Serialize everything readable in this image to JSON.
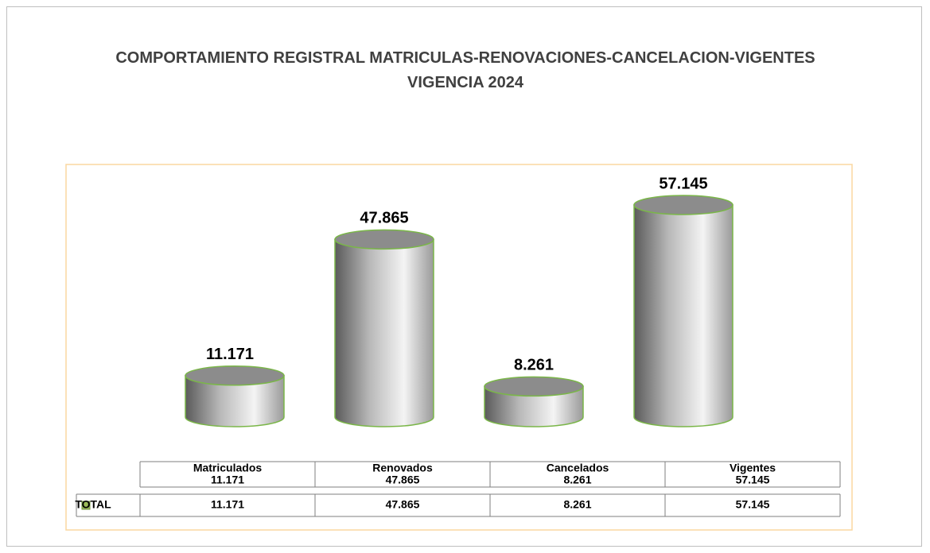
{
  "chart_data": {
    "type": "bar",
    "title": "COMPORTAMIENTO REGISTRAL MATRICULAS-RENOVACIONES-CANCELACION-VIGENTES VIGENCIA 2024",
    "categories": [
      "Matriculados",
      "Renovados",
      "Cancelados",
      "Vigentes"
    ],
    "series": [
      {
        "name": "TOTAL",
        "color": "#9bbb59",
        "values": [
          11171,
          47865,
          8261,
          57145
        ],
        "value_labels": [
          "11.171",
          "47.865",
          "8.261",
          "57.145"
        ]
      }
    ],
    "data_table": true
  }
}
